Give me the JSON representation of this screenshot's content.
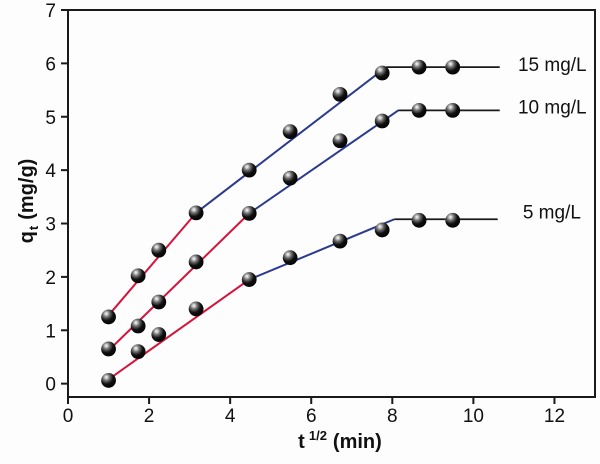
{
  "figure": {
    "background": "#fdfdfd"
  },
  "colors": {
    "axis": "#1a1a1a",
    "text": "#111111",
    "red_segment": "#d4143c",
    "blue_segment": "#2b3a8e",
    "plateau_segment": "#1a1a1a",
    "marker_fill": "#000000",
    "marker_highlight": "#ffffff"
  },
  "chart_data": {
    "type": "scatter-line",
    "title": "",
    "xlabel": "t 1/2 (min)",
    "ylabel": "q t (mg/g)",
    "xlabel_parts": {
      "base": "t",
      "sup": "1/2",
      "rest": "(min)"
    },
    "ylabel_parts": {
      "base": "q",
      "sub": "t",
      "rest": "(mg/g)"
    },
    "xlim": [
      0,
      13
    ],
    "ylim": [
      -0.25,
      7
    ],
    "xticks": [
      0,
      2,
      4,
      6,
      8,
      10,
      12
    ],
    "yticks": [
      0,
      1,
      2,
      3,
      4,
      5,
      6,
      7
    ],
    "grid": false,
    "legend_position": "inline-right",
    "x": [
      1.0,
      1.73,
      2.24,
      3.16,
      4.47,
      5.48,
      6.71,
      7.75,
      8.66,
      9.49
    ],
    "series": [
      {
        "name": "15 mg/L",
        "values": [
          1.25,
          2.02,
          2.5,
          3.2,
          4.0,
          4.72,
          5.42,
          5.82,
          5.93,
          5.93
        ],
        "label_x": 11.1,
        "label_y": 5.96,
        "segments": [
          {
            "color": "red",
            "x1": 1.0,
            "y1": 1.28,
            "x2": 3.16,
            "y2": 3.2
          },
          {
            "color": "blue",
            "x1": 3.16,
            "y1": 3.2,
            "x2": 7.85,
            "y2": 5.93
          },
          {
            "color": "plateau",
            "x1": 7.85,
            "y1": 5.93,
            "x2": 10.65,
            "y2": 5.93
          }
        ]
      },
      {
        "name": "10 mg/L",
        "values": [
          0.65,
          1.08,
          1.53,
          2.28,
          3.19,
          3.85,
          4.55,
          4.92,
          5.12,
          5.12
        ],
        "label_x": 11.1,
        "label_y": 5.16,
        "segments": [
          {
            "color": "red",
            "x1": 1.0,
            "y1": 0.62,
            "x2": 4.47,
            "y2": 3.19
          },
          {
            "color": "blue",
            "x1": 4.47,
            "y1": 3.19,
            "x2": 8.15,
            "y2": 5.12
          },
          {
            "color": "plateau",
            "x1": 8.15,
            "y1": 5.12,
            "x2": 10.65,
            "y2": 5.12
          }
        ]
      },
      {
        "name": "5 mg/L",
        "values": [
          0.06,
          0.6,
          0.92,
          1.4,
          1.95,
          2.36,
          2.67,
          2.88,
          3.06,
          3.06
        ],
        "label_x": 11.22,
        "label_y": 3.2,
        "segments": [
          {
            "color": "red",
            "x1": 1.0,
            "y1": 0.08,
            "x2": 4.47,
            "y2": 1.95
          },
          {
            "color": "blue",
            "x1": 4.47,
            "y1": 1.95,
            "x2": 8.05,
            "y2": 3.08
          },
          {
            "color": "plateau",
            "x1": 8.05,
            "y1": 3.08,
            "x2": 10.6,
            "y2": 3.08
          }
        ]
      }
    ]
  }
}
